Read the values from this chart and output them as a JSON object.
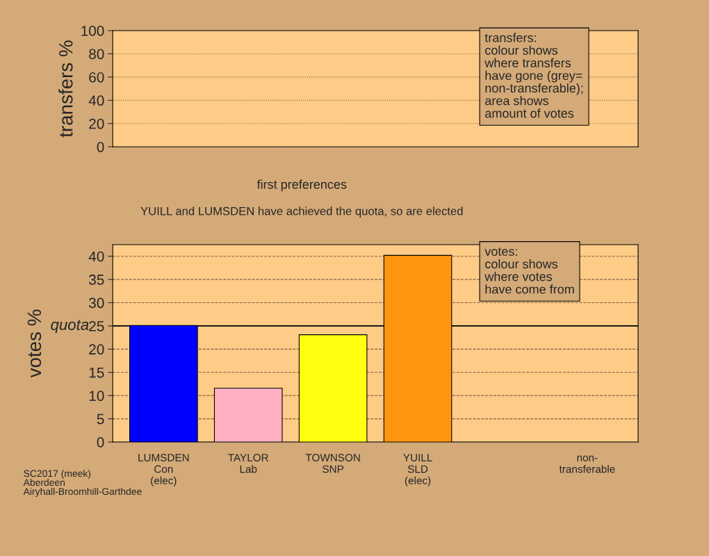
{
  "chart_data": [
    {
      "type": "bar",
      "ylabel": "transfers %",
      "categories": [
        null,
        null,
        null,
        null,
        null,
        null
      ],
      "values": [
        null,
        null,
        null,
        null,
        null,
        null
      ],
      "ylim": [
        0,
        100
      ],
      "yticks": [
        0,
        20,
        40,
        60,
        80,
        100
      ],
      "grid": "y",
      "tick_labels": "y",
      "annotations": [
        "transfers:\ncolour shows\nwhere transfers\nhave gone (grey=\nnon-transferable);\narea shows\namount of votes"
      ]
    },
    {
      "type": "bar",
      "title": "first preferences",
      "subtitle": "YUILL and LUMSDEN have achieved the quota, so are elected",
      "ylabel": "votes %",
      "categories": [
        "LUMSDEN\nCon\n(elec)",
        "TAYLOR\nLab",
        "TOWNSON\nSNP",
        "YUILL\nSLD\n(elec)",
        null,
        "non-\ntransferable"
      ],
      "values": [
        25.1,
        11.6,
        23.1,
        40.2,
        null,
        null
      ],
      "colors": [
        "#0000ff",
        "#ffb0c0",
        "#ffff10",
        "#ff9410",
        "#808080",
        "#808080"
      ],
      "ylim": [
        0,
        42.5
      ],
      "yticks": [
        0,
        5,
        10,
        15,
        20,
        25,
        30,
        35,
        40
      ],
      "grid": "y",
      "ref_lines": [
        {
          "axis": "y",
          "value": 25,
          "label": "quota",
          "color": "#000000",
          "line_style": "solid"
        }
      ],
      "annotations": [
        "votes:\ncolour shows\nwhere votes\nhave come from",
        "SC2017 (meek)\nAberdeen\nAiryhall-Broomhill-Garthdee"
      ]
    }
  ]
}
